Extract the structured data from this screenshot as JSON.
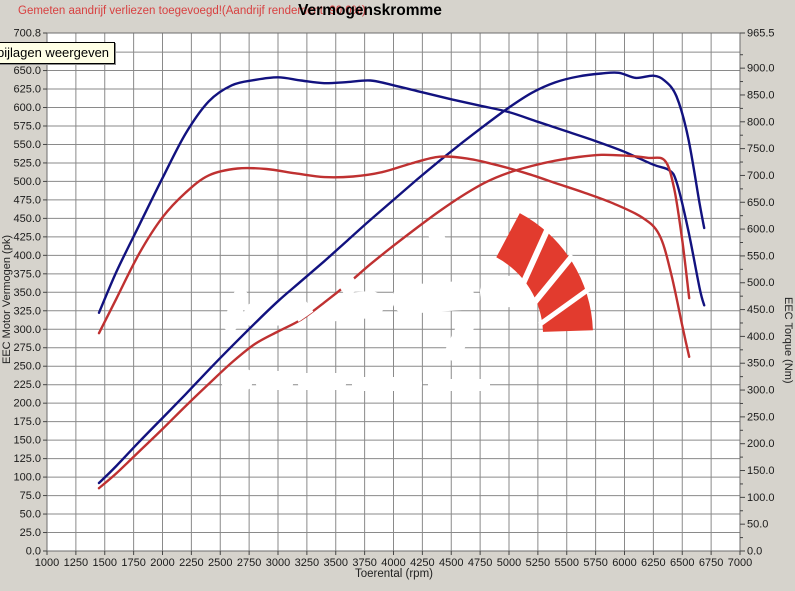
{
  "header": {
    "note": "Gemeten aandrijf verliezen toegevoegd!(Aandrijf rendement: 90.0%)",
    "title": "Vermogenskromme"
  },
  "tooltip": {
    "text": "bijlagen weergeven"
  },
  "colors": {
    "background": "#d6d3cc",
    "plot_background": "#ffffff",
    "grid": "#8a8a8a",
    "blue_curve": "#12127f",
    "red_curve": "#bf3131",
    "logo_red": "#e23b2e",
    "note_red": "#d84040",
    "tooltip_bg": "#ffffe6"
  },
  "chart_data": {
    "type": "line",
    "title": "Vermogenskromme",
    "xlabel": "Toerental (rpm)",
    "ylabel_left": "EEC Motor Vermogen (pk)",
    "ylabel_right": "EEC Torque (Nm)",
    "x_range": [
      1000,
      7000
    ],
    "x_tick_step": 250,
    "y_left_range": [
      0,
      700.8
    ],
    "y_left_tick_step": 25,
    "y_left_top_label": "700.8",
    "y_right_range": [
      0,
      965.5
    ],
    "y_right_label_step": 50,
    "y_right_minor_step": 25,
    "y_right_top_label": "965.5",
    "grid": true,
    "legend": "none",
    "series": [
      {
        "name": "blue-torque",
        "axis": "right",
        "color": "#12127f",
        "unit": "Nm",
        "x": [
          1450,
          1600,
          1800,
          2000,
          2200,
          2400,
          2600,
          2800,
          3000,
          3200,
          3400,
          3600,
          3800,
          4000,
          4250,
          4500,
          4750,
          5000,
          5250,
          5500,
          5750,
          6000,
          6250,
          6385,
          6450,
          6550,
          6650,
          6690
        ],
        "values": [
          444,
          520,
          608,
          695,
          778,
          838,
          868,
          878,
          883,
          877,
          872,
          874,
          877,
          868,
          855,
          842,
          830,
          818,
          800,
          782,
          764,
          744,
          720,
          710,
          688,
          600,
          490,
          458
        ]
      },
      {
        "name": "blue-power",
        "axis": "left",
        "color": "#12127f",
        "unit": "pk",
        "x": [
          1450,
          1600,
          1800,
          2000,
          2200,
          2400,
          2600,
          2800,
          3000,
          3200,
          3400,
          3600,
          3800,
          4000,
          4200,
          4400,
          4600,
          4800,
          5000,
          5200,
          5400,
          5600,
          5800,
          5950,
          6100,
          6250,
          6350,
          6450,
          6550,
          6650,
          6690
        ],
        "values": [
          92,
          115,
          148,
          180,
          212,
          245,
          277,
          308,
          338,
          365,
          392,
          420,
          448,
          475,
          502,
          528,
          553,
          577,
          600,
          620,
          634,
          642,
          646,
          647,
          640,
          643,
          636,
          615,
          560,
          470,
          437
        ]
      },
      {
        "name": "red-torque",
        "axis": "right",
        "color": "#bf3131",
        "unit": "Nm",
        "x": [
          1450,
          1600,
          1800,
          2000,
          2200,
          2400,
          2650,
          2900,
          3150,
          3400,
          3650,
          3900,
          4150,
          4400,
          4650,
          4900,
          5150,
          5400,
          5650,
          5900,
          6150,
          6300,
          6400,
          6500,
          6560
        ],
        "values": [
          406,
          470,
          555,
          622,
          668,
          700,
          713,
          712,
          704,
          697,
          698,
          706,
          722,
          735,
          731,
          719,
          704,
          686,
          668,
          648,
          622,
          590,
          520,
          420,
          362
        ]
      },
      {
        "name": "red-power",
        "axis": "left",
        "color": "#bf3131",
        "unit": "pk",
        "x": [
          1450,
          1600,
          1800,
          2000,
          2200,
          2400,
          2600,
          2800,
          3000,
          3200,
          3400,
          3600,
          3800,
          4000,
          4200,
          4400,
          4600,
          4800,
          5000,
          5200,
          5400,
          5600,
          5800,
          6000,
          6200,
          6350,
          6430,
          6500,
          6560
        ],
        "values": [
          85,
          105,
          135,
          165,
          196,
          226,
          255,
          280,
          297,
          313,
          336,
          361,
          388,
          413,
          437,
          460,
          481,
          499,
          512,
          521,
          528,
          533,
          536,
          535,
          532,
          528,
          490,
          420,
          342
        ]
      }
    ]
  }
}
